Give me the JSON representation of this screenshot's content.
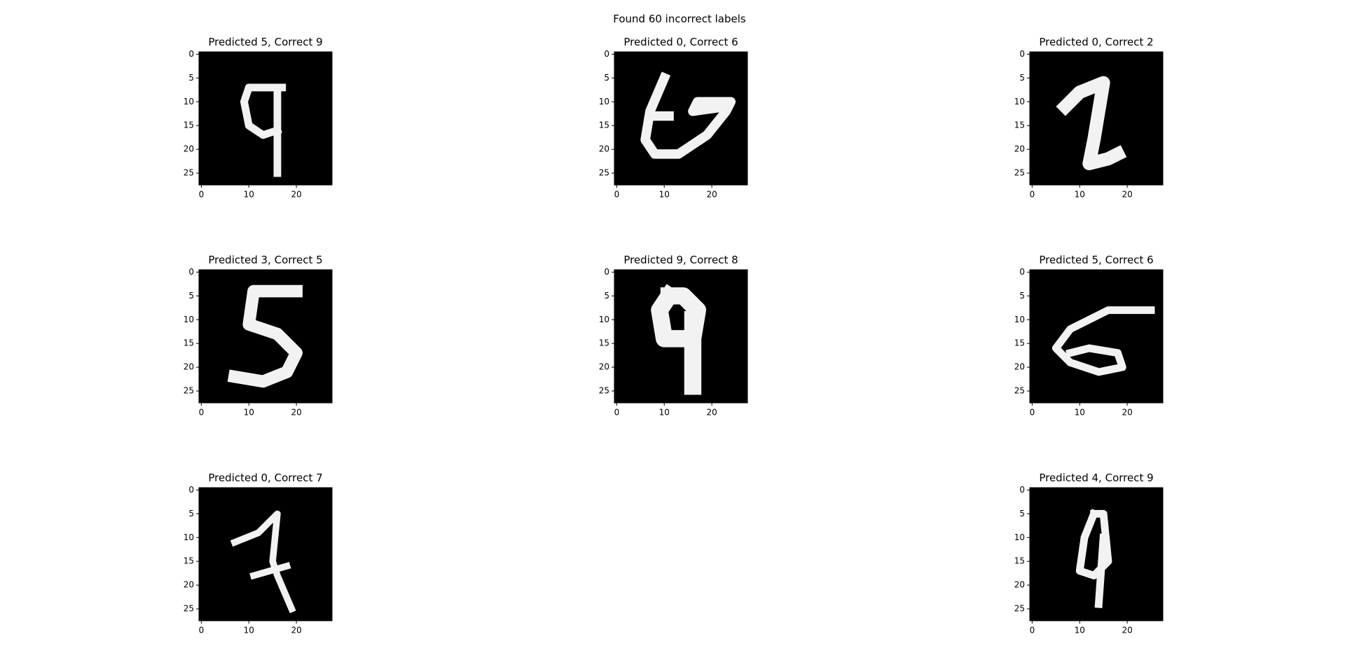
{
  "title": "Found 60 incorrect labels",
  "chart_data": [
    {
      "type": "image",
      "title": "Predicted 5, Correct 9",
      "xlim": [
        -0.5,
        27.5
      ],
      "ylim": [
        27.5,
        -0.5
      ],
      "xticks": [
        0,
        10,
        20
      ],
      "yticks": [
        0,
        5,
        10,
        15,
        20,
        25
      ]
    },
    {
      "type": "image",
      "title": "Predicted 0, Correct 6",
      "xlim": [
        -0.5,
        27.5
      ],
      "ylim": [
        27.5,
        -0.5
      ],
      "xticks": [
        0,
        10,
        20
      ],
      "yticks": [
        0,
        5,
        10,
        15,
        20,
        25
      ]
    },
    {
      "type": "image",
      "title": "Predicted 0, Correct 2",
      "xlim": [
        -0.5,
        27.5
      ],
      "ylim": [
        27.5,
        -0.5
      ],
      "xticks": [
        0,
        10,
        20
      ],
      "yticks": [
        0,
        5,
        10,
        15,
        20,
        25
      ]
    },
    {
      "type": "image",
      "title": "Predicted 3, Correct 5",
      "xlim": [
        -0.5,
        27.5
      ],
      "ylim": [
        27.5,
        -0.5
      ],
      "xticks": [
        0,
        10,
        20
      ],
      "yticks": [
        0,
        5,
        10,
        15,
        20,
        25
      ]
    },
    {
      "type": "image",
      "title": "Predicted 9, Correct 8",
      "xlim": [
        -0.5,
        27.5
      ],
      "ylim": [
        27.5,
        -0.5
      ],
      "xticks": [
        0,
        10,
        20
      ],
      "yticks": [
        0,
        5,
        10,
        15,
        20,
        25
      ]
    },
    {
      "type": "image",
      "title": "Predicted 5, Correct 6",
      "xlim": [
        -0.5,
        27.5
      ],
      "ylim": [
        27.5,
        -0.5
      ],
      "xticks": [
        0,
        10,
        20
      ],
      "yticks": [
        0,
        5,
        10,
        15,
        20,
        25
      ]
    },
    {
      "type": "image",
      "title": "Predicted 0, Correct 7",
      "xlim": [
        -0.5,
        27.5
      ],
      "ylim": [
        27.5,
        -0.5
      ],
      "xticks": [
        0,
        10,
        20
      ],
      "yticks": [
        0,
        5,
        10,
        15,
        20,
        25
      ]
    },
    {
      "type": "image",
      "title": "Predicted 4, Correct 9",
      "xlim": [
        -0.5,
        27.5
      ],
      "ylim": [
        27.5,
        -0.5
      ],
      "xticks": [
        0,
        10,
        20
      ],
      "yticks": [
        0,
        5,
        10,
        15,
        20,
        25
      ]
    }
  ]
}
